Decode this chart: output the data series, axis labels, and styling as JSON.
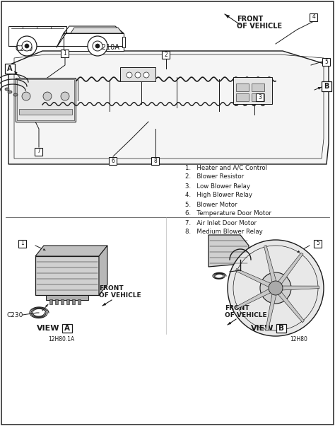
{
  "bg_color": "#f0f0f0",
  "line_color": "#1a1a1a",
  "text_color": "#1a1a1a",
  "fill_color": "#d8d8d8",
  "legend_items": [
    "1.   Heater and A/C Control",
    "2.   Blower Resistor",
    "3.   Low Blower Relay",
    "4.   High Blower Relay",
    "5.   Blower Motor",
    "6.   Temperature Door Motor",
    "7.   Air Inlet Door Motor",
    "8.   Medium Blower Relay"
  ],
  "part_num_left": "12H80.1A",
  "part_num_right": "12H80",
  "fig_width": 4.74,
  "fig_height": 6.02,
  "dpi": 100
}
